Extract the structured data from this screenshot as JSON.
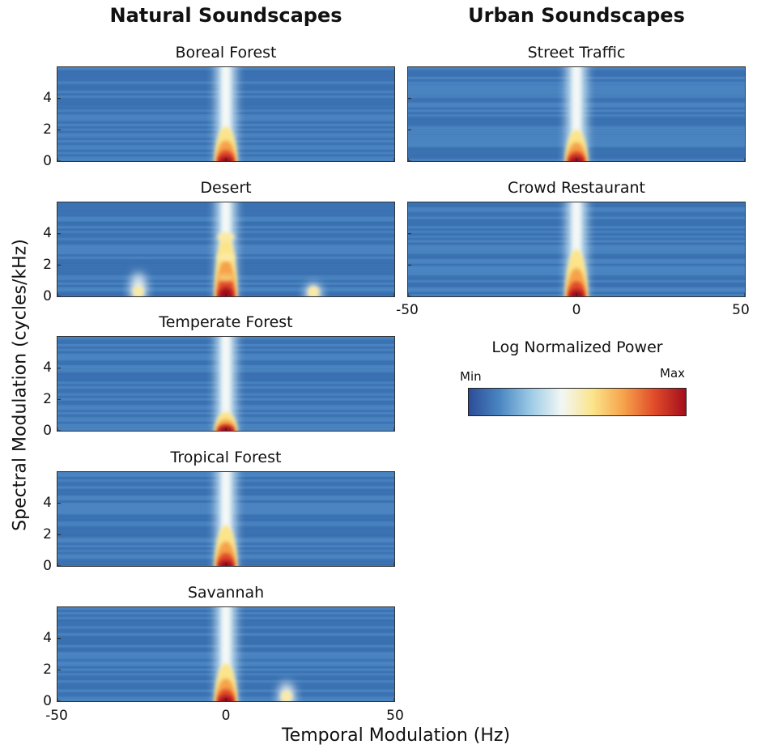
{
  "chart_data": {
    "type": "heatmap",
    "column_titles": [
      "Natural Soundscapes",
      "Urban Soundscapes"
    ],
    "xlabel": "Temporal Modulation (Hz)",
    "ylabel": "Spectral Modulation (cycles/kHz)",
    "xlim": [
      -50,
      50
    ],
    "ylim": [
      0,
      6
    ],
    "xticks": [
      "-50",
      "0",
      "50"
    ],
    "yticks": [
      "0",
      "2",
      "4"
    ],
    "colorbar": {
      "title": "Log Normalized Power",
      "min_label": "Min",
      "max_label": "Max",
      "colormap": [
        "#2c4d99",
        "#4a86c2",
        "#9ccbe6",
        "#f2f7f5",
        "#fbe48a",
        "#f6a24a",
        "#e04a2a",
        "#a30f1c"
      ]
    },
    "panels": [
      {
        "title": "Boreal Forest",
        "column": "Natural Soundscapes",
        "center_ridge": {
          "x": 0,
          "peak_y": 0.2,
          "hot_extent_y": 2.2
        },
        "side_peaks": []
      },
      {
        "title": "Desert",
        "column": "Natural Soundscapes",
        "center_ridge": {
          "x": 0,
          "peak_y": 0.4,
          "hot_extent_y": 4.0,
          "banded": true
        },
        "side_peaks": [
          {
            "x": -26,
            "extent_y": 1.5
          },
          {
            "x": 26,
            "extent_y": 0.8
          }
        ]
      },
      {
        "title": "Temperate Forest",
        "column": "Natural Soundscapes",
        "center_ridge": {
          "x": 0,
          "peak_y": 0.3,
          "hot_extent_y": 1.2
        },
        "side_peaks": []
      },
      {
        "title": "Tropical Forest",
        "column": "Natural Soundscapes",
        "center_ridge": {
          "x": 0,
          "peak_y": 0.3,
          "hot_extent_y": 2.6
        },
        "side_peaks": []
      },
      {
        "title": "Savannah",
        "column": "Natural Soundscapes",
        "center_ridge": {
          "x": 0,
          "peak_y": 0.2,
          "hot_extent_y": 2.4
        },
        "side_peaks": [
          {
            "x": 18,
            "extent_y": 1.2
          }
        ]
      },
      {
        "title": "Street Traffic",
        "column": "Urban Soundscapes",
        "center_ridge": {
          "x": 0,
          "peak_y": 0.2,
          "hot_extent_y": 2.0
        },
        "side_peaks": []
      },
      {
        "title": "Crowd Restaurant",
        "column": "Urban Soundscapes",
        "center_ridge": {
          "x": 0,
          "peak_y": 0.2,
          "hot_extent_y": 3.0
        },
        "side_peaks": []
      }
    ]
  }
}
